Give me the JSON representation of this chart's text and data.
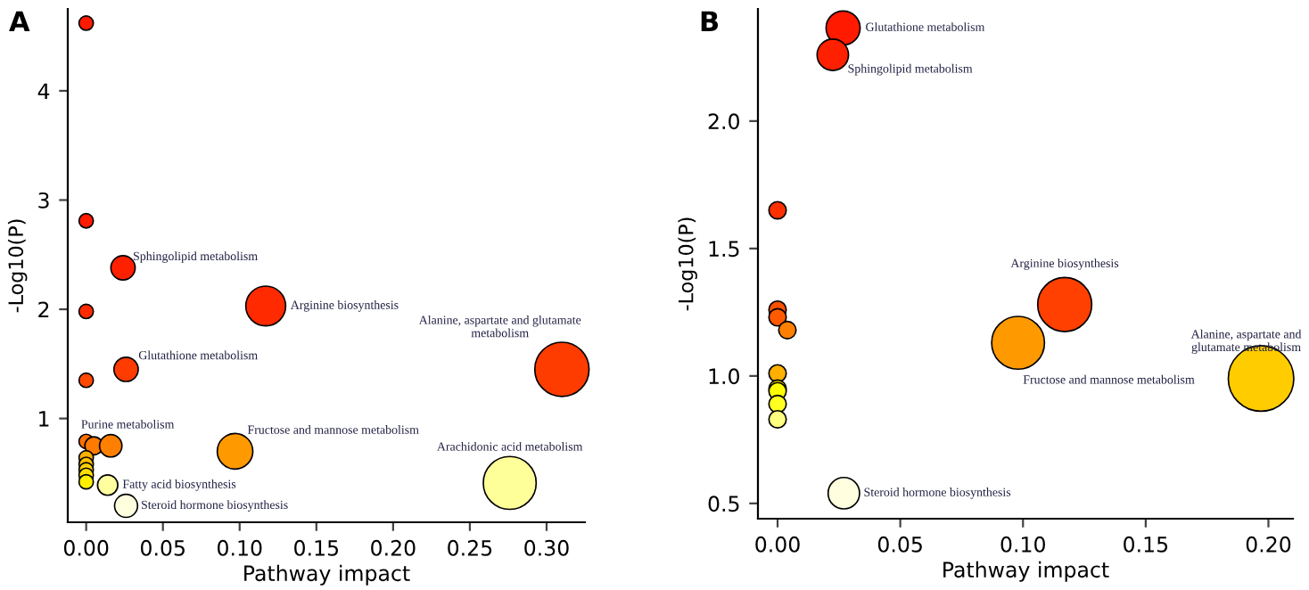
{
  "chart_data": [
    {
      "type": "bubble",
      "title": "A",
      "xlabel": "Pathway impact",
      "ylabel": "-Log10(P)",
      "x": [
        0,
        0,
        0.024,
        0.117,
        0,
        0.31,
        0.026,
        0,
        0,
        0.005,
        0.016,
        0.097,
        0,
        0,
        0,
        0,
        0,
        0.014,
        0.276,
        0.026
      ],
      "values": [
        4.62,
        2.81,
        2.38,
        2.03,
        1.98,
        1.45,
        1.45,
        1.35,
        0.79,
        0.75,
        0.75,
        0.7,
        0.64,
        0.58,
        0.53,
        0.48,
        0.42,
        0.39,
        0.41,
        0.2
      ],
      "sizes": [
        0.07,
        0.07,
        0.2,
        0.54,
        0.07,
        1,
        0.2,
        0.07,
        0.07,
        0.11,
        0.17,
        0.43,
        0.07,
        0.07,
        0.07,
        0.07,
        0.07,
        0.14,
        0.95,
        0.18
      ],
      "colors": [
        "#ff1a00",
        "#ff1a00",
        "#ff2000",
        "#ff2a00",
        "#ff2a00",
        "#ff3c00",
        "#ff3c00",
        "#ff4800",
        "#ff7000",
        "#ff7a00",
        "#ff8000",
        "#ff9900",
        "#ffb000",
        "#ffc000",
        "#ffd000",
        "#ffe000",
        "#fff000",
        "#ffffa0",
        "#ffff99",
        "#ffffe0"
      ],
      "xlim": [
        -0.012,
        0.325
      ],
      "ylim": [
        0.05,
        4.75
      ],
      "xticks": [
        {
          "value": 0,
          "label": "0.00"
        },
        {
          "value": 0.05,
          "label": "0.05"
        },
        {
          "value": 0.1,
          "label": "0.10"
        },
        {
          "value": 0.15,
          "label": "0.15"
        },
        {
          "value": 0.2,
          "label": "0.20"
        },
        {
          "value": 0.25,
          "label": "0.25"
        },
        {
          "value": 0.3,
          "label": "0.30"
        }
      ],
      "yticks": [
        1,
        2,
        3,
        4
      ],
      "annotations": [
        {
          "text": "Sphingolipid metabolism",
          "x": 0.024,
          "y": 2.38
        },
        {
          "text": "Arginine biosynthesis",
          "x": 0.117,
          "y": 2.03
        },
        {
          "text": "Alanine, aspartate and glutamate\nmetabolism",
          "x": 0.31,
          "y": 1.45
        },
        {
          "text": "Glutathione metabolism",
          "x": 0.026,
          "y": 1.45
        },
        {
          "text": "Purine metabolism",
          "x": 0.016,
          "y": 0.75
        },
        {
          "text": "Fructose and mannose metabolism",
          "x": 0.097,
          "y": 0.7
        },
        {
          "text": "Arachidonic acid metabolism",
          "x": 0.276,
          "y": 0.41
        },
        {
          "text": "Fatty acid biosynthesis",
          "x": 0.014,
          "y": 0.39
        },
        {
          "text": "Steroid hormone biosynthesis",
          "x": 0.026,
          "y": 0.2
        }
      ]
    },
    {
      "type": "bubble",
      "title": "B",
      "xlabel": "Pathway impact",
      "ylabel": "-Log10(P)",
      "x": [
        0.0267,
        0.0225,
        0,
        0.117,
        0,
        0,
        0.004,
        0.098,
        0.197,
        0,
        0,
        0,
        0,
        0,
        0.027
      ],
      "values": [
        2.365,
        2.26,
        1.65,
        1.28,
        1.26,
        1.23,
        1.18,
        1.13,
        0.99,
        1.01,
        0.95,
        0.94,
        0.89,
        0.83,
        0.54
      ],
      "sizes": [
        0.27,
        0.23,
        0.07,
        0.68,
        0.07,
        0.07,
        0.07,
        0.65,
        1,
        0.07,
        0.07,
        0.07,
        0.07,
        0.07,
        0.23
      ],
      "colors": [
        "#ff1a00",
        "#ff2000",
        "#ff3000",
        "#ff4000",
        "#ff5000",
        "#ff5a00",
        "#ff8000",
        "#ff9900",
        "#ffcc00",
        "#ffb000",
        "#ffe000",
        "#ffff00",
        "#ffff20",
        "#ffff80",
        "#ffffe0"
      ],
      "xlim": [
        -0.008,
        0.21
      ],
      "ylim": [
        0.44,
        2.44
      ],
      "xticks": [
        {
          "value": 0,
          "label": "0.00"
        },
        {
          "value": 0.05,
          "label": "0.05"
        },
        {
          "value": 0.1,
          "label": "0.10"
        },
        {
          "value": 0.15,
          "label": "0.15"
        },
        {
          "value": 0.2,
          "label": "0.20"
        }
      ],
      "yticks": [
        {
          "value": 0.5,
          "label": "0.5"
        },
        {
          "value": 1,
          "label": "1.0"
        },
        {
          "value": 1.5,
          "label": "1.5"
        },
        {
          "value": 2,
          "label": "2.0"
        }
      ],
      "annotations": [
        {
          "text": "Glutathione metabolism",
          "x": 0.0267,
          "y": 2.365
        },
        {
          "text": "Sphingolipid metabolism",
          "x": 0.0225,
          "y": 2.26
        },
        {
          "text": "Arginine biosynthesis",
          "x": 0.117,
          "y": 1.28
        },
        {
          "text": "Fructose and mannose metabolism",
          "x": 0.098,
          "y": 1.13
        },
        {
          "text": "Alanine, aspartate and\nglutamate metabolism",
          "x": 0.197,
          "y": 0.99
        },
        {
          "text": "Steroid hormone biosynthesis",
          "x": 0.027,
          "y": 0.54
        }
      ]
    }
  ]
}
